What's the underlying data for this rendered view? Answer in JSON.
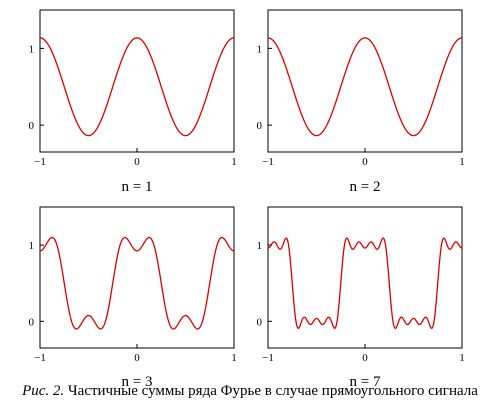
{
  "caption": {
    "label": "Рис. 2.",
    "text": "Частичные суммы ряда Фурье в случае прямоугольного сигнала"
  },
  "chart_data": [
    {
      "type": "line",
      "n": 1,
      "label": "n = 1",
      "xlim": [
        -1,
        1
      ],
      "ylim": [
        -0.35,
        1.5
      ],
      "xticks": [
        -1,
        0,
        1
      ],
      "xtick_labels": [
        "−1",
        "0",
        "1"
      ],
      "yticks": [
        0,
        1
      ],
      "ytick_labels": [
        "0",
        "1"
      ],
      "x_range": [
        -1,
        1
      ],
      "samples": 400,
      "line_color": "#dd0000",
      "formula": "S_n(x) = 1/2 + (2/π) Σ_{k=1..n} sin(k·π/2)/k · cos(2πkx)"
    },
    {
      "type": "line",
      "n": 2,
      "label": "n = 2",
      "xlim": [
        -1,
        1
      ],
      "ylim": [
        -0.35,
        1.5
      ],
      "xticks": [
        -1,
        0,
        1
      ],
      "xtick_labels": [
        "−1",
        "0",
        "1"
      ],
      "yticks": [
        0,
        1
      ],
      "ytick_labels": [
        "0",
        "1"
      ],
      "x_range": [
        -1,
        1
      ],
      "samples": 400,
      "line_color": "#dd0000",
      "formula": "S_n(x) = 1/2 + (2/π) Σ_{k=1..n} sin(k·π/2)/k · cos(2πkx)"
    },
    {
      "type": "line",
      "n": 3,
      "label": "n = 3",
      "xlim": [
        -1,
        1
      ],
      "ylim": [
        -0.35,
        1.5
      ],
      "xticks": [
        -1,
        0,
        1
      ],
      "xtick_labels": [
        "−1",
        "0",
        "1"
      ],
      "yticks": [
        0,
        1
      ],
      "ytick_labels": [
        "0",
        "1"
      ],
      "x_range": [
        -1,
        1
      ],
      "samples": 400,
      "line_color": "#dd0000",
      "formula": "S_n(x) = 1/2 + (2/π) Σ_{k=1..n} sin(k·π/2)/k · cos(2πkx)"
    },
    {
      "type": "line",
      "n": 7,
      "label": "n = 7",
      "xlim": [
        -1,
        1
      ],
      "ylim": [
        -0.35,
        1.5
      ],
      "xticks": [
        -1,
        0,
        1
      ],
      "xtick_labels": [
        "−1",
        "0",
        "1"
      ],
      "yticks": [
        0,
        1
      ],
      "ytick_labels": [
        "0",
        "1"
      ],
      "x_range": [
        -1,
        1
      ],
      "samples": 400,
      "line_color": "#dd0000",
      "formula": "S_n(x) = 1/2 + (2/π) Σ_{k=1..n} sin(k·π/2)/k · cos(2πkx)"
    }
  ]
}
